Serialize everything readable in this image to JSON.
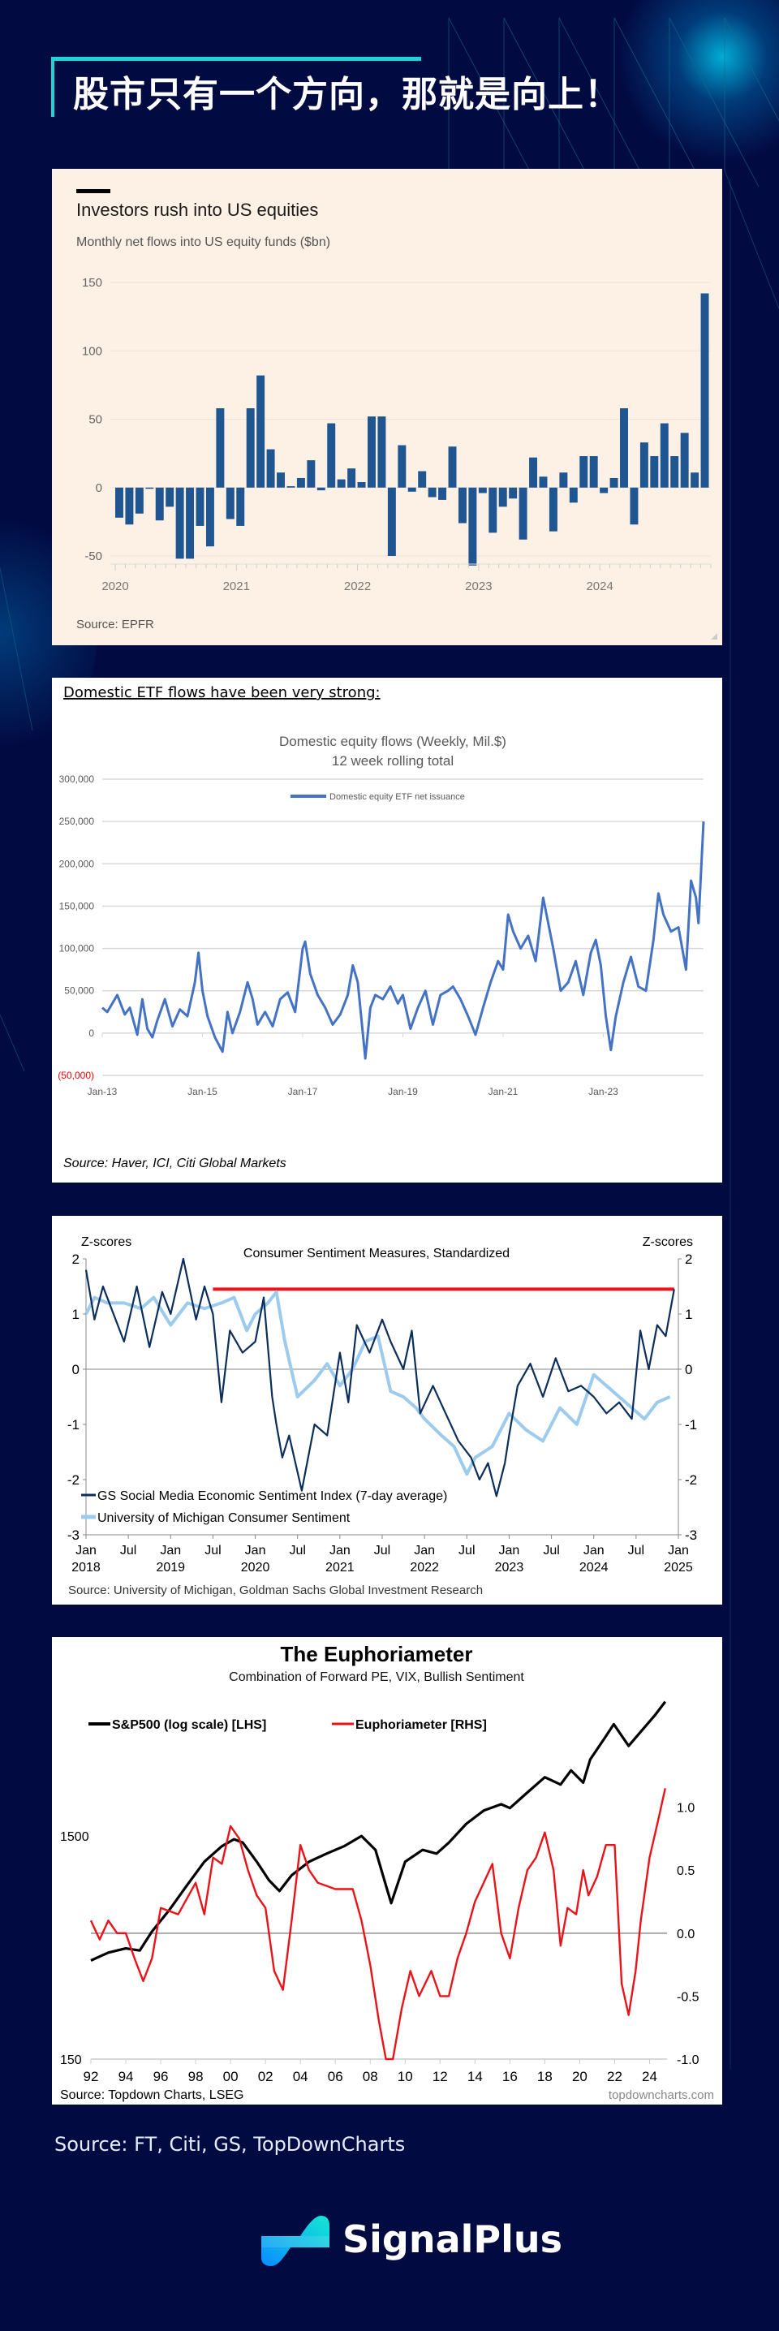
{
  "header": {
    "title": "股市只有一个方向，那就是向上！"
  },
  "footer": {
    "source": "Source: FT, Citi, GS, TopDownCharts",
    "brand": "SignalPlus"
  },
  "colors": {
    "background": "#020a42",
    "accent": "#1fd3d6",
    "ft_bar": "#1f5590",
    "citi_line": "#4472c4",
    "gs_dark": "#0c2e5c",
    "umich_light": "#9ccbed",
    "euphoria_red": "#e8141a"
  },
  "chart_data": [
    {
      "id": "ft",
      "type": "bar",
      "title": "Investors rush into US equities",
      "subtitle": "Monthly net flows into US equity funds ($bn)",
      "source": "Source: EPFR",
      "ylim": [
        -50,
        150
      ],
      "yticks": [
        150,
        100,
        50,
        0,
        -50
      ],
      "xtick_labels": [
        "2020",
        "2021",
        "2022",
        "2023",
        "2024"
      ],
      "start": "2020-01",
      "values": [
        -22,
        -27,
        -19,
        0,
        -24,
        -14,
        -52,
        -52,
        -28,
        -43,
        58,
        -23,
        -28,
        58,
        82,
        28,
        11,
        1,
        7,
        20,
        -2,
        47,
        6,
        14,
        4,
        52,
        52,
        -50,
        31,
        -3,
        12,
        -7,
        -9,
        30,
        -26,
        -57,
        -4,
        -33,
        -14,
        -8,
        -38,
        22,
        8,
        -32,
        11,
        -11,
        23,
        23,
        -4,
        7,
        58,
        -27,
        33,
        23,
        47,
        23,
        40,
        11,
        142
      ]
    },
    {
      "id": "citi",
      "type": "line",
      "heading": "Domestic ETF flows have been very strong",
      "heading_suffix": ":",
      "title": "Domestic equity flows (Weekly, Mil.$)",
      "subtitle": "12 week rolling total",
      "legend": [
        "Domestic equity ETF net issuance"
      ],
      "source": "Source: Haver, ICI, Citi Global Markets",
      "ylim": [
        -50000,
        300000
      ],
      "ytick_labels": [
        "300,000",
        "250,000",
        "200,000",
        "150,000",
        "100,000",
        "50,000",
        "0",
        "(50,000)"
      ],
      "yticks": [
        300000,
        250000,
        200000,
        150000,
        100000,
        50000,
        0,
        -50000
      ],
      "xtick_labels": [
        "Jan-13",
        "Jan-15",
        "Jan-17",
        "Jan-19",
        "Jan-21",
        "Jan-23"
      ],
      "xlim": [
        2013.0,
        2025.0
      ],
      "series": [
        {
          "name": "Domestic equity ETF net issuance",
          "x": [
            2013.0,
            2013.1,
            2013.2,
            2013.3,
            2013.45,
            2013.55,
            2013.7,
            2013.8,
            2013.9,
            2014.0,
            2014.1,
            2014.25,
            2014.4,
            2014.55,
            2014.7,
            2014.85,
            2014.92,
            2015.0,
            2015.1,
            2015.25,
            2015.4,
            2015.5,
            2015.6,
            2015.75,
            2015.9,
            2016.0,
            2016.1,
            2016.25,
            2016.4,
            2016.55,
            2016.7,
            2016.85,
            2017.0,
            2017.05,
            2017.15,
            2017.3,
            2017.45,
            2017.6,
            2017.75,
            2017.9,
            2018.0,
            2018.1,
            2018.25,
            2018.35,
            2018.45,
            2018.6,
            2018.75,
            2018.9,
            2019.0,
            2019.15,
            2019.3,
            2019.45,
            2019.6,
            2019.75,
            2019.9,
            2020.0,
            2020.15,
            2020.3,
            2020.45,
            2020.6,
            2020.75,
            2020.9,
            2021.0,
            2021.1,
            2021.2,
            2021.35,
            2021.5,
            2021.65,
            2021.8,
            2021.9,
            2022.0,
            2022.15,
            2022.3,
            2022.45,
            2022.6,
            2022.75,
            2022.85,
            2022.95,
            2023.05,
            2023.15,
            2023.25,
            2023.4,
            2023.55,
            2023.7,
            2023.85,
            2024.0,
            2024.1,
            2024.2,
            2024.35,
            2024.5,
            2024.65,
            2024.75,
            2024.85,
            2024.9,
            2025.0
          ],
          "y": [
            30000,
            25000,
            35000,
            45000,
            22000,
            30000,
            -2000,
            40000,
            5000,
            -5000,
            15000,
            40000,
            8000,
            28000,
            20000,
            60000,
            95000,
            50000,
            20000,
            -5000,
            -22000,
            25000,
            0,
            25000,
            60000,
            40000,
            10000,
            25000,
            8000,
            40000,
            48000,
            25000,
            100000,
            108000,
            70000,
            45000,
            30000,
            10000,
            22000,
            45000,
            80000,
            60000,
            -30000,
            30000,
            45000,
            40000,
            55000,
            35000,
            45000,
            5000,
            30000,
            50000,
            10000,
            45000,
            50000,
            55000,
            40000,
            20000,
            -2000,
            30000,
            60000,
            85000,
            75000,
            140000,
            120000,
            100000,
            115000,
            85000,
            160000,
            130000,
            100000,
            50000,
            60000,
            85000,
            45000,
            95000,
            110000,
            80000,
            20000,
            -20000,
            20000,
            60000,
            90000,
            55000,
            50000,
            110000,
            165000,
            140000,
            120000,
            125000,
            75000,
            180000,
            160000,
            130000,
            250000
          ]
        }
      ]
    },
    {
      "id": "gs",
      "type": "line",
      "title": "Consumer Sentiment Measures, Standardized",
      "y_left_label": "Z-scores",
      "y_right_label": "Z-scores",
      "ylim": [
        -3,
        2
      ],
      "yticks": [
        2,
        1,
        0,
        -1,
        -2,
        -3
      ],
      "xtick_labels": [
        [
          "Jan",
          "2018"
        ],
        [
          "Jul",
          ""
        ],
        [
          "Jan",
          "2019"
        ],
        [
          "Jul",
          ""
        ],
        [
          "Jan",
          "2020"
        ],
        [
          "Jul",
          ""
        ],
        [
          "Jan",
          "2021"
        ],
        [
          "Jul",
          ""
        ],
        [
          "Jan",
          "2022"
        ],
        [
          "Jul",
          ""
        ],
        [
          "Jan",
          "2023"
        ],
        [
          "Jul",
          ""
        ],
        [
          "Jan",
          "2024"
        ],
        [
          "Jul",
          ""
        ],
        [
          "Jan",
          "2025"
        ]
      ],
      "xlim": [
        2018.0,
        2025.0
      ],
      "source": "Source: University of Michigan, Goldman Sachs Global Investment Research",
      "reference_line": {
        "value": 1.45,
        "from": 2019.5,
        "to": 2024.95
      },
      "series": [
        {
          "name": "GS Social Media Economic Sentiment Index (7-day average)",
          "x": [
            2018.0,
            2018.1,
            2018.2,
            2018.3,
            2018.45,
            2018.6,
            2018.75,
            2018.9,
            2019.0,
            2019.15,
            2019.3,
            2019.4,
            2019.5,
            2019.6,
            2019.7,
            2019.85,
            2020.0,
            2020.1,
            2020.2,
            2020.25,
            2020.32,
            2020.4,
            2020.55,
            2020.7,
            2020.85,
            2021.0,
            2021.1,
            2021.2,
            2021.35,
            2021.5,
            2021.6,
            2021.75,
            2021.85,
            2021.95,
            2022.1,
            2022.25,
            2022.4,
            2022.55,
            2022.65,
            2022.75,
            2022.85,
            2022.95,
            2023.0,
            2023.1,
            2023.25,
            2023.4,
            2023.55,
            2023.7,
            2023.85,
            2024.0,
            2024.15,
            2024.3,
            2024.45,
            2024.55,
            2024.65,
            2024.75,
            2024.85,
            2024.95
          ],
          "y": [
            1.8,
            0.9,
            1.5,
            1.1,
            0.5,
            1.5,
            0.4,
            1.4,
            1.0,
            2.0,
            0.9,
            1.5,
            1.0,
            -0.6,
            0.7,
            0.3,
            0.5,
            1.3,
            -0.5,
            -1.0,
            -1.6,
            -1.2,
            -2.2,
            -1.0,
            -1.2,
            0.3,
            -0.6,
            0.8,
            0.3,
            0.9,
            0.5,
            0.0,
            0.7,
            -0.8,
            -0.3,
            -0.8,
            -1.3,
            -1.6,
            -2.0,
            -1.7,
            -2.3,
            -1.7,
            -1.2,
            -0.3,
            0.1,
            -0.5,
            0.2,
            -0.4,
            -0.3,
            -0.5,
            -0.8,
            -0.6,
            -0.9,
            0.7,
            0.0,
            0.8,
            0.6,
            1.45
          ]
        },
        {
          "name": "University of Michigan Consumer Sentiment",
          "x": [
            2018.0,
            2018.1,
            2018.25,
            2018.45,
            2018.65,
            2018.8,
            2019.0,
            2019.2,
            2019.4,
            2019.6,
            2019.75,
            2019.9,
            2020.0,
            2020.15,
            2020.25,
            2020.35,
            2020.5,
            2020.7,
            2020.85,
            2021.0,
            2021.15,
            2021.3,
            2021.45,
            2021.6,
            2021.75,
            2021.9,
            2022.0,
            2022.2,
            2022.35,
            2022.5,
            2022.6,
            2022.8,
            2023.0,
            2023.2,
            2023.4,
            2023.6,
            2023.8,
            2024.0,
            2024.15,
            2024.3,
            2024.45,
            2024.6,
            2024.75,
            2024.9
          ],
          "y": [
            1.0,
            1.3,
            1.2,
            1.2,
            1.1,
            1.3,
            0.8,
            1.2,
            1.1,
            1.2,
            1.3,
            0.7,
            1.0,
            1.2,
            1.4,
            0.5,
            -0.5,
            -0.2,
            0.1,
            -0.3,
            0.0,
            0.5,
            0.6,
            -0.4,
            -0.5,
            -0.7,
            -0.9,
            -1.2,
            -1.4,
            -1.9,
            -1.6,
            -1.4,
            -0.8,
            -1.1,
            -1.3,
            -0.7,
            -1.0,
            -0.1,
            -0.3,
            -0.5,
            -0.7,
            -0.9,
            -0.6,
            -0.5
          ]
        }
      ]
    },
    {
      "id": "euphoria",
      "type": "line",
      "title": "The Euphoriameter",
      "subtitle": "Combination of Forward PE, VIX, Bullish Sentiment",
      "legend": [
        "S&P500 (log scale) [LHS]",
        "Euphoriameter [RHS]"
      ],
      "source": "Source: Topdown Charts, LSEG",
      "watermark": "topdowncharts.com",
      "y_left": {
        "scale": "log",
        "ticks": [
          1500,
          150
        ],
        "ylim": [
          150,
          6500
        ]
      },
      "y_right": {
        "ticks": [
          "1.0",
          "0.5",
          "0.0",
          "-0.5",
          "-1.0"
        ],
        "ylim": [
          -1.0,
          1.9
        ]
      },
      "xtick_labels": [
        "92",
        "94",
        "96",
        "98",
        "00",
        "02",
        "04",
        "06",
        "08",
        "10",
        "12",
        "14",
        "16",
        "18",
        "20",
        "22",
        "24"
      ],
      "xlim": [
        1992.0,
        2025.0
      ],
      "series": [
        {
          "name": "S&P500 (log scale) [LHS]",
          "axis": "left",
          "x": [
            1992.0,
            1993.0,
            1994.0,
            1994.8,
            1995.5,
            1996.5,
            1997.5,
            1998.5,
            1999.5,
            2000.2,
            2000.7,
            2001.5,
            2002.2,
            2002.8,
            2003.5,
            2004.5,
            2005.5,
            2006.5,
            2007.5,
            2008.3,
            2008.9,
            2009.2,
            2010.0,
            2011.0,
            2011.8,
            2012.5,
            2013.5,
            2014.5,
            2015.5,
            2016.0,
            2017.0,
            2018.0,
            2018.9,
            2019.5,
            2020.2,
            2020.6,
            2021.5,
            2021.95,
            2022.8,
            2023.5,
            2024.3,
            2024.9
          ],
          "y": [
            415,
            450,
            470,
            460,
            560,
            700,
            900,
            1150,
            1350,
            1450,
            1400,
            1150,
            950,
            850,
            1000,
            1150,
            1250,
            1350,
            1500,
            1300,
            900,
            750,
            1150,
            1300,
            1250,
            1400,
            1700,
            1950,
            2080,
            2000,
            2350,
            2750,
            2550,
            2950,
            2600,
            3300,
            4200,
            4750,
            3800,
            4400,
            5200,
            6000
          ]
        },
        {
          "name": "Euphoriameter [RHS]",
          "axis": "right",
          "x": [
            1992.0,
            1992.5,
            1993.0,
            1993.5,
            1994.0,
            1994.5,
            1995.0,
            1995.5,
            1996.0,
            1997.0,
            1998.0,
            1998.5,
            1999.0,
            1999.5,
            2000.0,
            2000.5,
            2001.0,
            2001.5,
            2002.0,
            2002.5,
            2003.0,
            2003.5,
            2004.0,
            2004.5,
            2005.0,
            2006.0,
            2007.0,
            2007.5,
            2008.0,
            2008.5,
            2008.9,
            2009.3,
            2009.8,
            2010.3,
            2010.8,
            2011.5,
            2012.0,
            2012.5,
            2013.0,
            2013.5,
            2014.0,
            2014.5,
            2015.0,
            2015.5,
            2016.0,
            2016.5,
            2017.0,
            2017.5,
            2018.0,
            2018.5,
            2018.9,
            2019.3,
            2019.8,
            2020.2,
            2020.5,
            2021.0,
            2021.5,
            2022.0,
            2022.4,
            2022.8,
            2023.2,
            2023.5,
            2024.0,
            2024.5,
            2024.9
          ],
          "y": [
            0.1,
            -0.05,
            0.1,
            0.0,
            0.0,
            -0.2,
            -0.38,
            -0.2,
            0.2,
            0.15,
            0.4,
            0.15,
            0.6,
            0.55,
            0.85,
            0.75,
            0.5,
            0.3,
            0.2,
            -0.3,
            -0.45,
            0.1,
            0.7,
            0.5,
            0.4,
            0.35,
            0.35,
            0.1,
            -0.25,
            -0.7,
            -1.0,
            -1.0,
            -0.6,
            -0.3,
            -0.5,
            -0.3,
            -0.5,
            -0.5,
            -0.2,
            0.0,
            0.25,
            0.4,
            0.55,
            0.0,
            -0.2,
            0.2,
            0.5,
            0.6,
            0.8,
            0.5,
            -0.1,
            0.2,
            0.15,
            0.5,
            0.3,
            0.45,
            0.7,
            0.7,
            -0.4,
            -0.65,
            -0.3,
            0.1,
            0.6,
            0.9,
            1.15
          ]
        }
      ]
    }
  ]
}
